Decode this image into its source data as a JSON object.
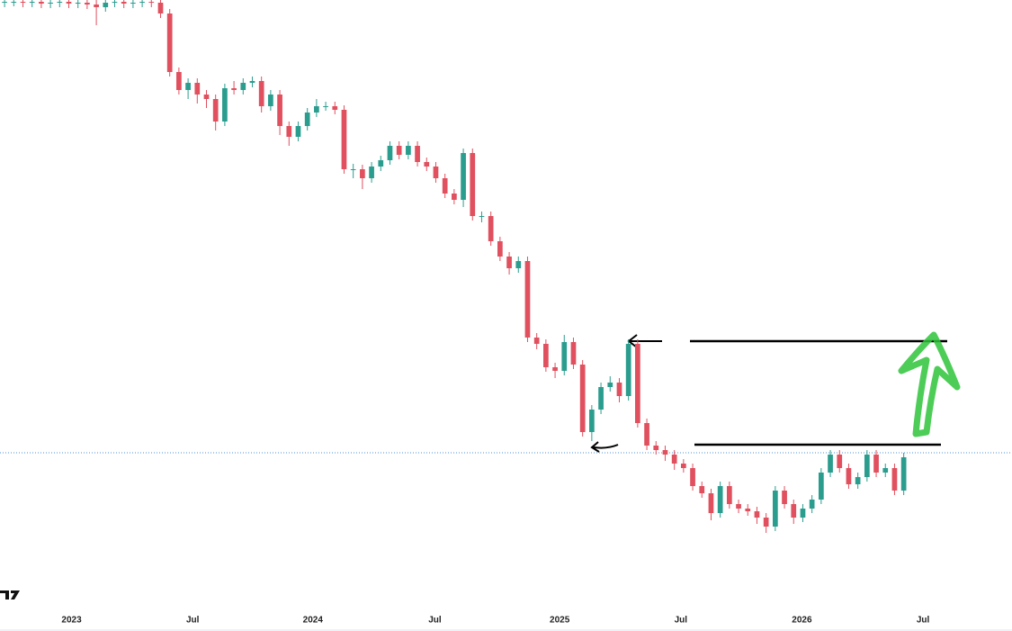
{
  "chart_data": {
    "type": "candlestick",
    "open": [
      647,
      648,
      648,
      647,
      648,
      646,
      647,
      648,
      646,
      647,
      645,
      642,
      647,
      648,
      646,
      647,
      648,
      647,
      635,
      570,
      550,
      558,
      545,
      540,
      515,
      552,
      550,
      558,
      560,
      532,
      545,
      510,
      498,
      510,
      525,
      532,
      532,
      528,
      462,
      462,
      452,
      465,
      472,
      488,
      478,
      488,
      470,
      465,
      452,
      435,
      428,
      480,
      410,
      410,
      382,
      365,
      352,
      360,
      275,
      268,
      242,
      238,
      270,
      245,
      170,
      195,
      220,
      225,
      210,
      268,
      180,
      155,
      150,
      145,
      135,
      130,
      110,
      102,
      80,
      110,
      90,
      85,
      82,
      75,
      65,
      105,
      90,
      75,
      85,
      95,
      125,
      145,
      130,
      112,
      120,
      145,
      125,
      130,
      105
    ],
    "high": [
      653,
      653,
      653,
      653,
      653,
      652,
      653,
      653,
      652,
      652,
      650,
      652,
      653,
      653,
      652,
      653,
      653,
      652,
      640,
      575,
      563,
      563,
      550,
      545,
      557,
      560,
      563,
      565,
      565,
      550,
      550,
      515,
      515,
      530,
      540,
      537,
      537,
      533,
      468,
      467,
      470,
      477,
      493,
      493,
      493,
      493,
      475,
      470,
      457,
      440,
      485,
      485,
      415,
      415,
      387,
      370,
      365,
      365,
      280,
      273,
      247,
      278,
      275,
      250,
      200,
      225,
      232,
      230,
      273,
      273,
      185,
      160,
      155,
      150,
      140,
      135,
      115,
      107,
      115,
      115,
      95,
      90,
      87,
      80,
      110,
      110,
      95,
      90,
      100,
      130,
      150,
      150,
      135,
      125,
      150,
      150,
      135,
      135,
      147
    ],
    "low": [
      642,
      643,
      642,
      642,
      641,
      641,
      642,
      641,
      641,
      640,
      622,
      637,
      642,
      641,
      641,
      642,
      642,
      630,
      565,
      545,
      540,
      535,
      530,
      505,
      510,
      545,
      545,
      553,
      525,
      527,
      500,
      488,
      493,
      505,
      520,
      527,
      523,
      457,
      452,
      440,
      447,
      460,
      467,
      473,
      473,
      465,
      460,
      447,
      430,
      423,
      420,
      405,
      403,
      377,
      360,
      345,
      347,
      270,
      262,
      237,
      230,
      233,
      240,
      165,
      160,
      190,
      215,
      203,
      205,
      175,
      150,
      145,
      138,
      128,
      125,
      105,
      97,
      72,
      75,
      85,
      80,
      77,
      68,
      58,
      60,
      85,
      68,
      70,
      80,
      90,
      120,
      125,
      107,
      107,
      115,
      120,
      120,
      100,
      100
    ],
    "close": [
      648,
      648,
      647,
      648,
      646,
      647,
      648,
      646,
      647,
      645,
      642,
      647,
      648,
      646,
      647,
      648,
      647,
      635,
      570,
      550,
      558,
      545,
      540,
      515,
      552,
      550,
      558,
      560,
      532,
      545,
      510,
      498,
      510,
      525,
      532,
      532,
      528,
      462,
      462,
      452,
      465,
      472,
      488,
      478,
      488,
      470,
      465,
      452,
      435,
      428,
      480,
      410,
      410,
      382,
      365,
      352,
      360,
      275,
      268,
      242,
      238,
      270,
      245,
      170,
      195,
      220,
      225,
      210,
      268,
      180,
      155,
      150,
      145,
      135,
      130,
      110,
      102,
      80,
      110,
      90,
      85,
      82,
      75,
      65,
      105,
      90,
      75,
      85,
      95,
      125,
      145,
      130,
      112,
      120,
      145,
      125,
      130,
      105,
      142
    ],
    "up_color": "#2a9d8f",
    "down_color": "#e0505e",
    "xlim": [
      0,
      110.3
    ],
    "ylim": [
      0,
      650
    ],
    "xticks": [
      {
        "value": 7.8,
        "label": "2023"
      },
      {
        "value": 21,
        "label": "Jul"
      },
      {
        "value": 34.1,
        "label": "2024"
      },
      {
        "value": 47.4,
        "label": "Jul"
      },
      {
        "value": 61,
        "label": "2025"
      },
      {
        "value": 74.2,
        "label": "Jul"
      },
      {
        "value": 87.4,
        "label": "2026"
      },
      {
        "value": 100.6,
        "label": "Jul"
      }
    ]
  }
}
